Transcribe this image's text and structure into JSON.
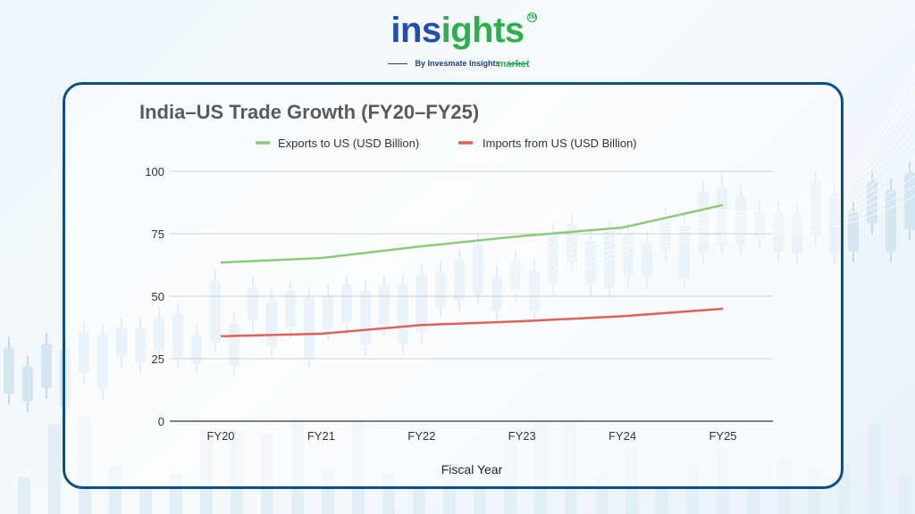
{
  "brand": {
    "logo_part1": "ins",
    "logo_part2": "ights",
    "logo_sub": "market",
    "trademark": "TM",
    "byline": "By Invesmate Insights",
    "colors": {
      "primary": "#1f4fb3",
      "accent": "#2db04b",
      "frame": "#0c4f86"
    }
  },
  "chart_data": {
    "type": "line",
    "title": "India–US Trade Growth (FY20–FY25)",
    "xlabel": "Fiscal Year",
    "ylabel": "",
    "categories": [
      "FY20",
      "FY21",
      "FY22",
      "FY23",
      "FY24",
      "FY25"
    ],
    "ylim": [
      0,
      100
    ],
    "yticks": [
      0,
      25,
      50,
      75,
      100
    ],
    "grid": true,
    "legend_position": "top",
    "series": [
      {
        "name": "Exports to US (USD Billion)",
        "color": "#8cc97a",
        "values": [
          63.5,
          65.3,
          70.0,
          74.1,
          77.5,
          86.5
        ]
      },
      {
        "name": "Imports from US (USD Billion)",
        "color": "#e0605a",
        "values": [
          34.0,
          35.0,
          38.5,
          40.0,
          42.0,
          45.0
        ]
      }
    ]
  }
}
